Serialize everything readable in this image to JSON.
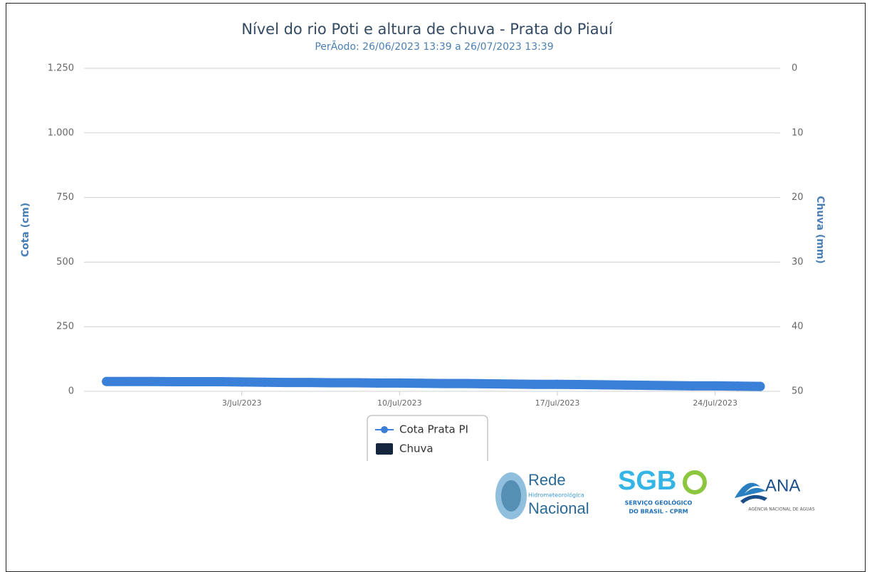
{
  "chart_data": {
    "type": "line",
    "title": "Nível do rio Poti e altura de chuva - Prata do Piauí",
    "subtitle": "PerÃodo: 26/06/2023 13:39 a 26/07/2023 13:39",
    "y_label": "Cota (cm)",
    "y2_label": "Chuva (mm)",
    "x": [
      "2023-06-27",
      "2023-06-28",
      "2023-06-29",
      "2023-06-30",
      "2023-07-01",
      "2023-07-02",
      "2023-07-03",
      "2023-07-04",
      "2023-07-05",
      "2023-07-06",
      "2023-07-07",
      "2023-07-08",
      "2023-07-09",
      "2023-07-10",
      "2023-07-11",
      "2023-07-12",
      "2023-07-13",
      "2023-07-14",
      "2023-07-15",
      "2023-07-16",
      "2023-07-17",
      "2023-07-18",
      "2023-07-19",
      "2023-07-20",
      "2023-07-21",
      "2023-07-22",
      "2023-07-23",
      "2023-07-24",
      "2023-07-25",
      "2023-07-26"
    ],
    "series": [
      {
        "name": "Cota Prata PI",
        "color": "#3a7fd8",
        "values": [
          38,
          38,
          38,
          37,
          37,
          37,
          36,
          35,
          34,
          34,
          33,
          33,
          32,
          32,
          31,
          30,
          30,
          29,
          28,
          27,
          27,
          26,
          25,
          24,
          23,
          22,
          21,
          21,
          20,
          19
        ]
      },
      {
        "name": "Chuva",
        "color": "#15253d",
        "axis": "y2",
        "values": [
          0,
          0,
          0,
          0,
          0,
          0,
          0,
          0,
          0,
          0,
          0,
          0,
          0,
          0,
          0,
          0,
          0,
          0,
          0,
          0,
          0,
          0,
          0,
          0,
          0,
          0,
          0,
          0,
          0,
          0
        ]
      }
    ],
    "xlim": [
      "2023-06-26T13:39",
      "2023-07-26T13:39"
    ],
    "xticks": [
      {
        "value": "2023-07-03",
        "label": "3/Jul/2023"
      },
      {
        "value": "2023-07-10",
        "label": "10/Jul/2023"
      },
      {
        "value": "2023-07-17",
        "label": "17/Jul/2023"
      },
      {
        "value": "2023-07-24",
        "label": "24/Jul/2023"
      }
    ],
    "ylim": [
      0,
      1250
    ],
    "yticks": [
      0,
      250,
      500,
      750,
      {
        "value": 1000,
        "label": "1.000"
      },
      {
        "value": 1250,
        "label": "1.250"
      }
    ],
    "y2lim": [
      50,
      0
    ],
    "y2ticks": [
      0,
      10,
      20,
      30,
      40,
      50
    ],
    "grid": true
  },
  "logos": {
    "rede": [
      "Rede",
      "Hidrometeorológica",
      "Nacional"
    ],
    "sgb": [
      "SGB",
      "SERVIÇO GEOLÓGICO",
      "DO BRASIL - CPRM"
    ],
    "ana": [
      "ANA",
      "AGÊNCIA NACIONAL DE ÁGUAS"
    ]
  }
}
